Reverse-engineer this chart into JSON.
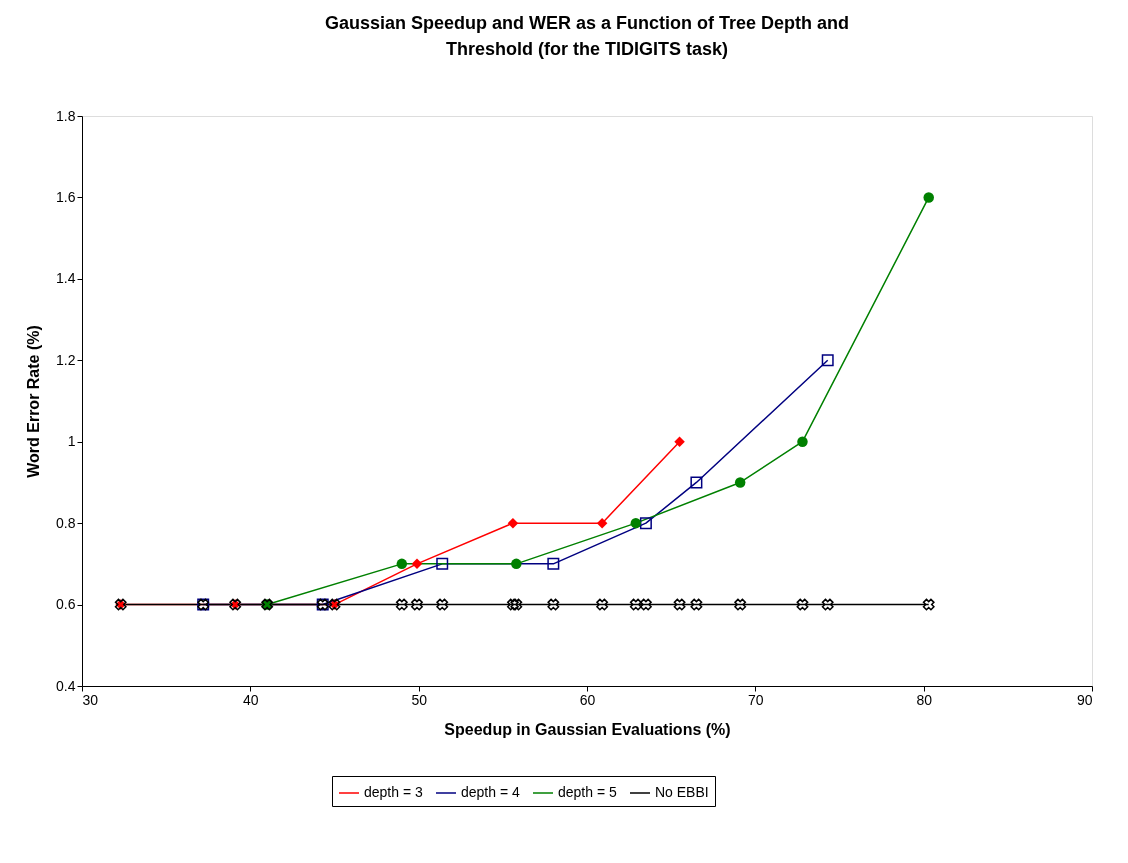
{
  "chart_data": {
    "type": "line",
    "title": "Gaussian Speedup and WER as a Function of Tree Depth and Threshold (for the TIDIGITS task)",
    "xlabel": "Speedup in Gaussian Evaluations (%)",
    "ylabel": "Word Error Rate (%)",
    "xlim": [
      30,
      90
    ],
    "xticks": [
      30,
      40,
      50,
      60,
      70,
      80,
      90
    ],
    "ylim": [
      0.4,
      1.8
    ],
    "yticks": [
      0.4,
      0.6,
      0.8,
      {
        "value": 1,
        "label": "1"
      },
      1.2,
      1.4,
      1.6,
      1.8
    ],
    "grid": false,
    "legend": "bottom",
    "line_style": "solid",
    "series": [
      {
        "name": "depth = 3",
        "color": "#ff0000",
        "marker": "diamond",
        "x": [
          32.3,
          39.1,
          45.0,
          49.9,
          55.6,
          60.9,
          65.5
        ],
        "values": [
          0.6,
          0.6,
          0.6,
          0.7,
          0.8,
          0.8,
          1.0
        ]
      },
      {
        "name": "depth = 4",
        "color": "#000080",
        "marker": "square",
        "x": [
          37.2,
          44.3,
          51.4,
          58.0,
          63.5,
          66.5,
          74.3
        ],
        "values": [
          0.6,
          0.6,
          0.7,
          0.7,
          0.8,
          0.9,
          1.2
        ]
      },
      {
        "name": "depth = 5",
        "color": "#008000",
        "marker": "circle",
        "x": [
          41.0,
          49.0,
          55.8,
          62.9,
          69.1,
          72.8,
          80.3
        ],
        "values": [
          0.6,
          0.7,
          0.7,
          0.8,
          0.9,
          1.0,
          1.6
        ]
      },
      {
        "name": "No EBBI",
        "color": "#000000",
        "marker": "cross",
        "x": [
          32.3,
          37.2,
          39.1,
          41.0,
          44.3,
          45.0,
          49.0,
          49.9,
          51.4,
          55.6,
          55.8,
          58.0,
          60.9,
          62.9,
          63.5,
          65.5,
          66.5,
          69.1,
          72.8,
          74.3,
          80.3
        ],
        "values": [
          0.6,
          0.6,
          0.6,
          0.6,
          0.6,
          0.6,
          0.6,
          0.6,
          0.6,
          0.6,
          0.6,
          0.6,
          0.6,
          0.6,
          0.6,
          0.6,
          0.6,
          0.6,
          0.6,
          0.6,
          0.6
        ]
      }
    ]
  }
}
